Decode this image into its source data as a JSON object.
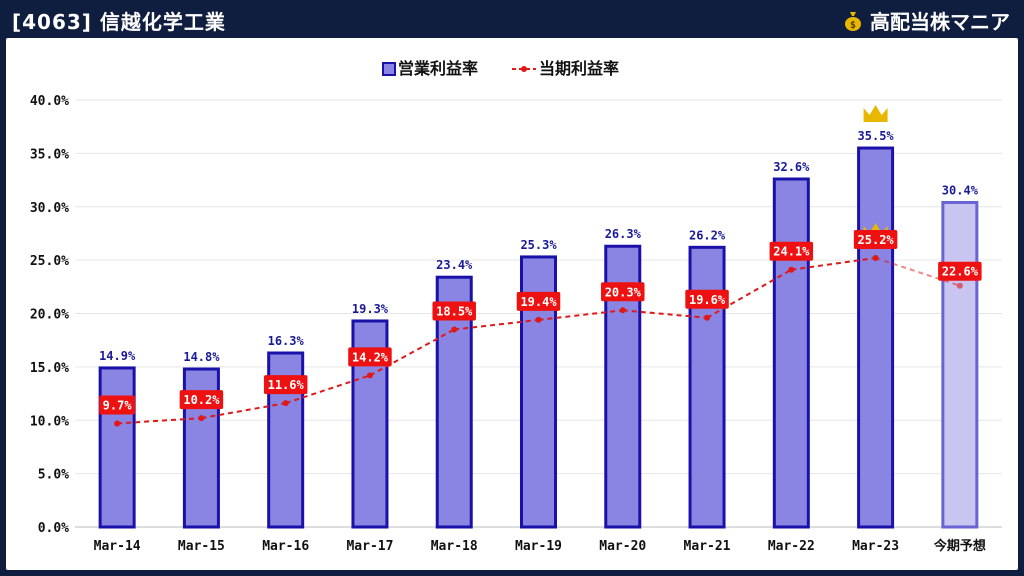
{
  "header": {
    "title": "[4063] 信越化学工業",
    "brand": "高配当株マニア",
    "brand_icon": "money-bag-icon"
  },
  "colors": {
    "background": "#0f1d3f",
    "bar_fill": "#8a84e2",
    "bar_stroke": "#1a12a8",
    "bar_forecast_fill": "#c9c5f1",
    "bar_forecast_stroke": "#6a63d4",
    "line": "#e01818",
    "label_bg": "#ee1111",
    "bar_label": "#1a1a99",
    "crown": "#e8b800"
  },
  "chart_data": {
    "type": "bar",
    "categories": [
      "Mar-14",
      "Mar-15",
      "Mar-16",
      "Mar-17",
      "Mar-18",
      "Mar-19",
      "Mar-20",
      "Mar-21",
      "Mar-22",
      "Mar-23",
      "今期予想"
    ],
    "series": [
      {
        "name": "営業利益率",
        "kind": "bar",
        "values": [
          14.9,
          14.8,
          16.3,
          19.3,
          23.4,
          25.3,
          26.3,
          26.2,
          32.6,
          35.5,
          30.4
        ],
        "labels": [
          "14.9%",
          "14.8%",
          "16.3%",
          "19.3%",
          "23.4%",
          "25.3%",
          "26.3%",
          "26.2%",
          "32.6%",
          "35.5%",
          "30.4%"
        ]
      },
      {
        "name": "当期利益率",
        "kind": "line",
        "values": [
          9.7,
          10.2,
          11.6,
          14.2,
          18.5,
          19.4,
          20.3,
          19.6,
          24.1,
          25.2,
          22.6
        ],
        "labels": [
          "9.7%",
          "10.2%",
          "11.6%",
          "14.2%",
          "18.5%",
          "19.4%",
          "20.3%",
          "19.6%",
          "24.1%",
          "25.2%",
          "22.6%"
        ]
      }
    ],
    "forecast_index": 10,
    "highlight_index": 9,
    "highlight_icon": "crown-icon",
    "ylim": [
      0,
      40
    ],
    "yticks": [
      "0.0%",
      "5.0%",
      "10.0%",
      "15.0%",
      "20.0%",
      "25.0%",
      "30.0%",
      "35.0%",
      "40.0%"
    ],
    "legend": "top-center",
    "grid": true
  }
}
